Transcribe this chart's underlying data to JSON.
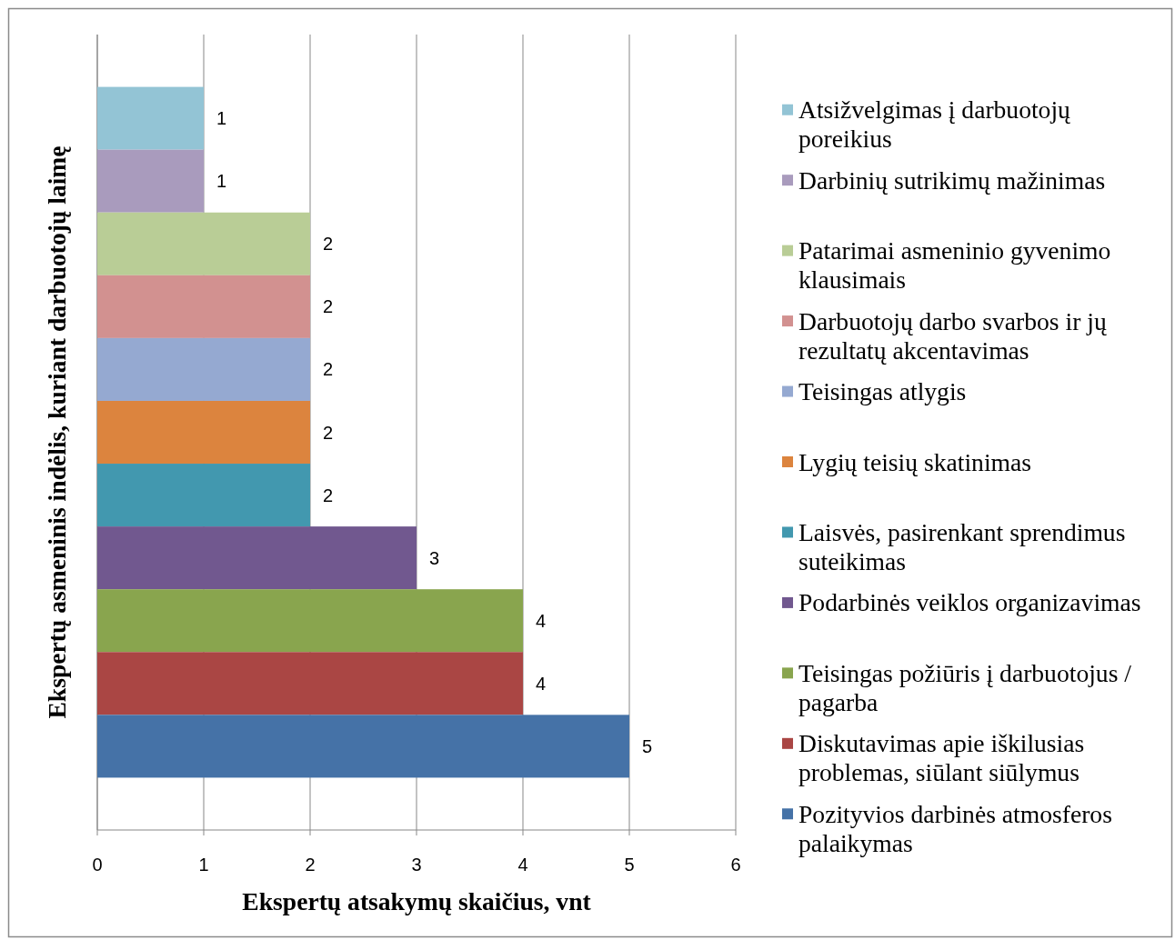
{
  "chart_data": {
    "type": "bar",
    "orientation": "horizontal",
    "categories": [
      null
    ],
    "series": [
      {
        "name": "Atsižvelgimas į darbuotojų poreikius",
        "color": "#93c4d5",
        "values": [
          1
        ]
      },
      {
        "name": "Darbinių sutrikimų mažinimas",
        "color": "#a99bbd",
        "values": [
          1
        ]
      },
      {
        "name": "Patarimai asmeninio gyvenimo klausimais",
        "color": "#b9cd96",
        "values": [
          2
        ]
      },
      {
        "name": "Darbuotojų darbo svarbos ir jų rezultatų akcentavimas",
        "color": "#d29190",
        "values": [
          2
        ]
      },
      {
        "name": "Teisingas atlygis",
        "color": "#95a9d1",
        "values": [
          2
        ]
      },
      {
        "name": "Lygių teisių skatinimas",
        "color": "#dc843e",
        "values": [
          2
        ]
      },
      {
        "name": "Laisvės, pasirenkant sprendimus suteikimas",
        "color": "#4298af",
        "values": [
          2
        ]
      },
      {
        "name": "Podarbinės veiklos organizavimas",
        "color": "#71588f",
        "values": [
          3
        ]
      },
      {
        "name": "Teisingas požiūris į darbuotojus / pagarba",
        "color": "#89a54e",
        "values": [
          4
        ]
      },
      {
        "name": "Diskutavimas apie iškilusias problemas, siūlant siūlymus",
        "color": "#aa4644",
        "values": [
          4
        ]
      },
      {
        "name": "Pozityvios darbinės atmosferos palaikymas",
        "color": "#4572a7",
        "values": [
          5
        ]
      }
    ],
    "xlabel": "Ekspertų atsakymų skaičius, vnt",
    "ylabel": "Ekspertų asmeninis indėlis, kuriant darbuotojų laimę",
    "xlim": [
      0,
      6
    ],
    "xticks": [
      0,
      1,
      2,
      3,
      4,
      5,
      6
    ],
    "grid": "x",
    "legend": "right",
    "data_labels": true
  }
}
